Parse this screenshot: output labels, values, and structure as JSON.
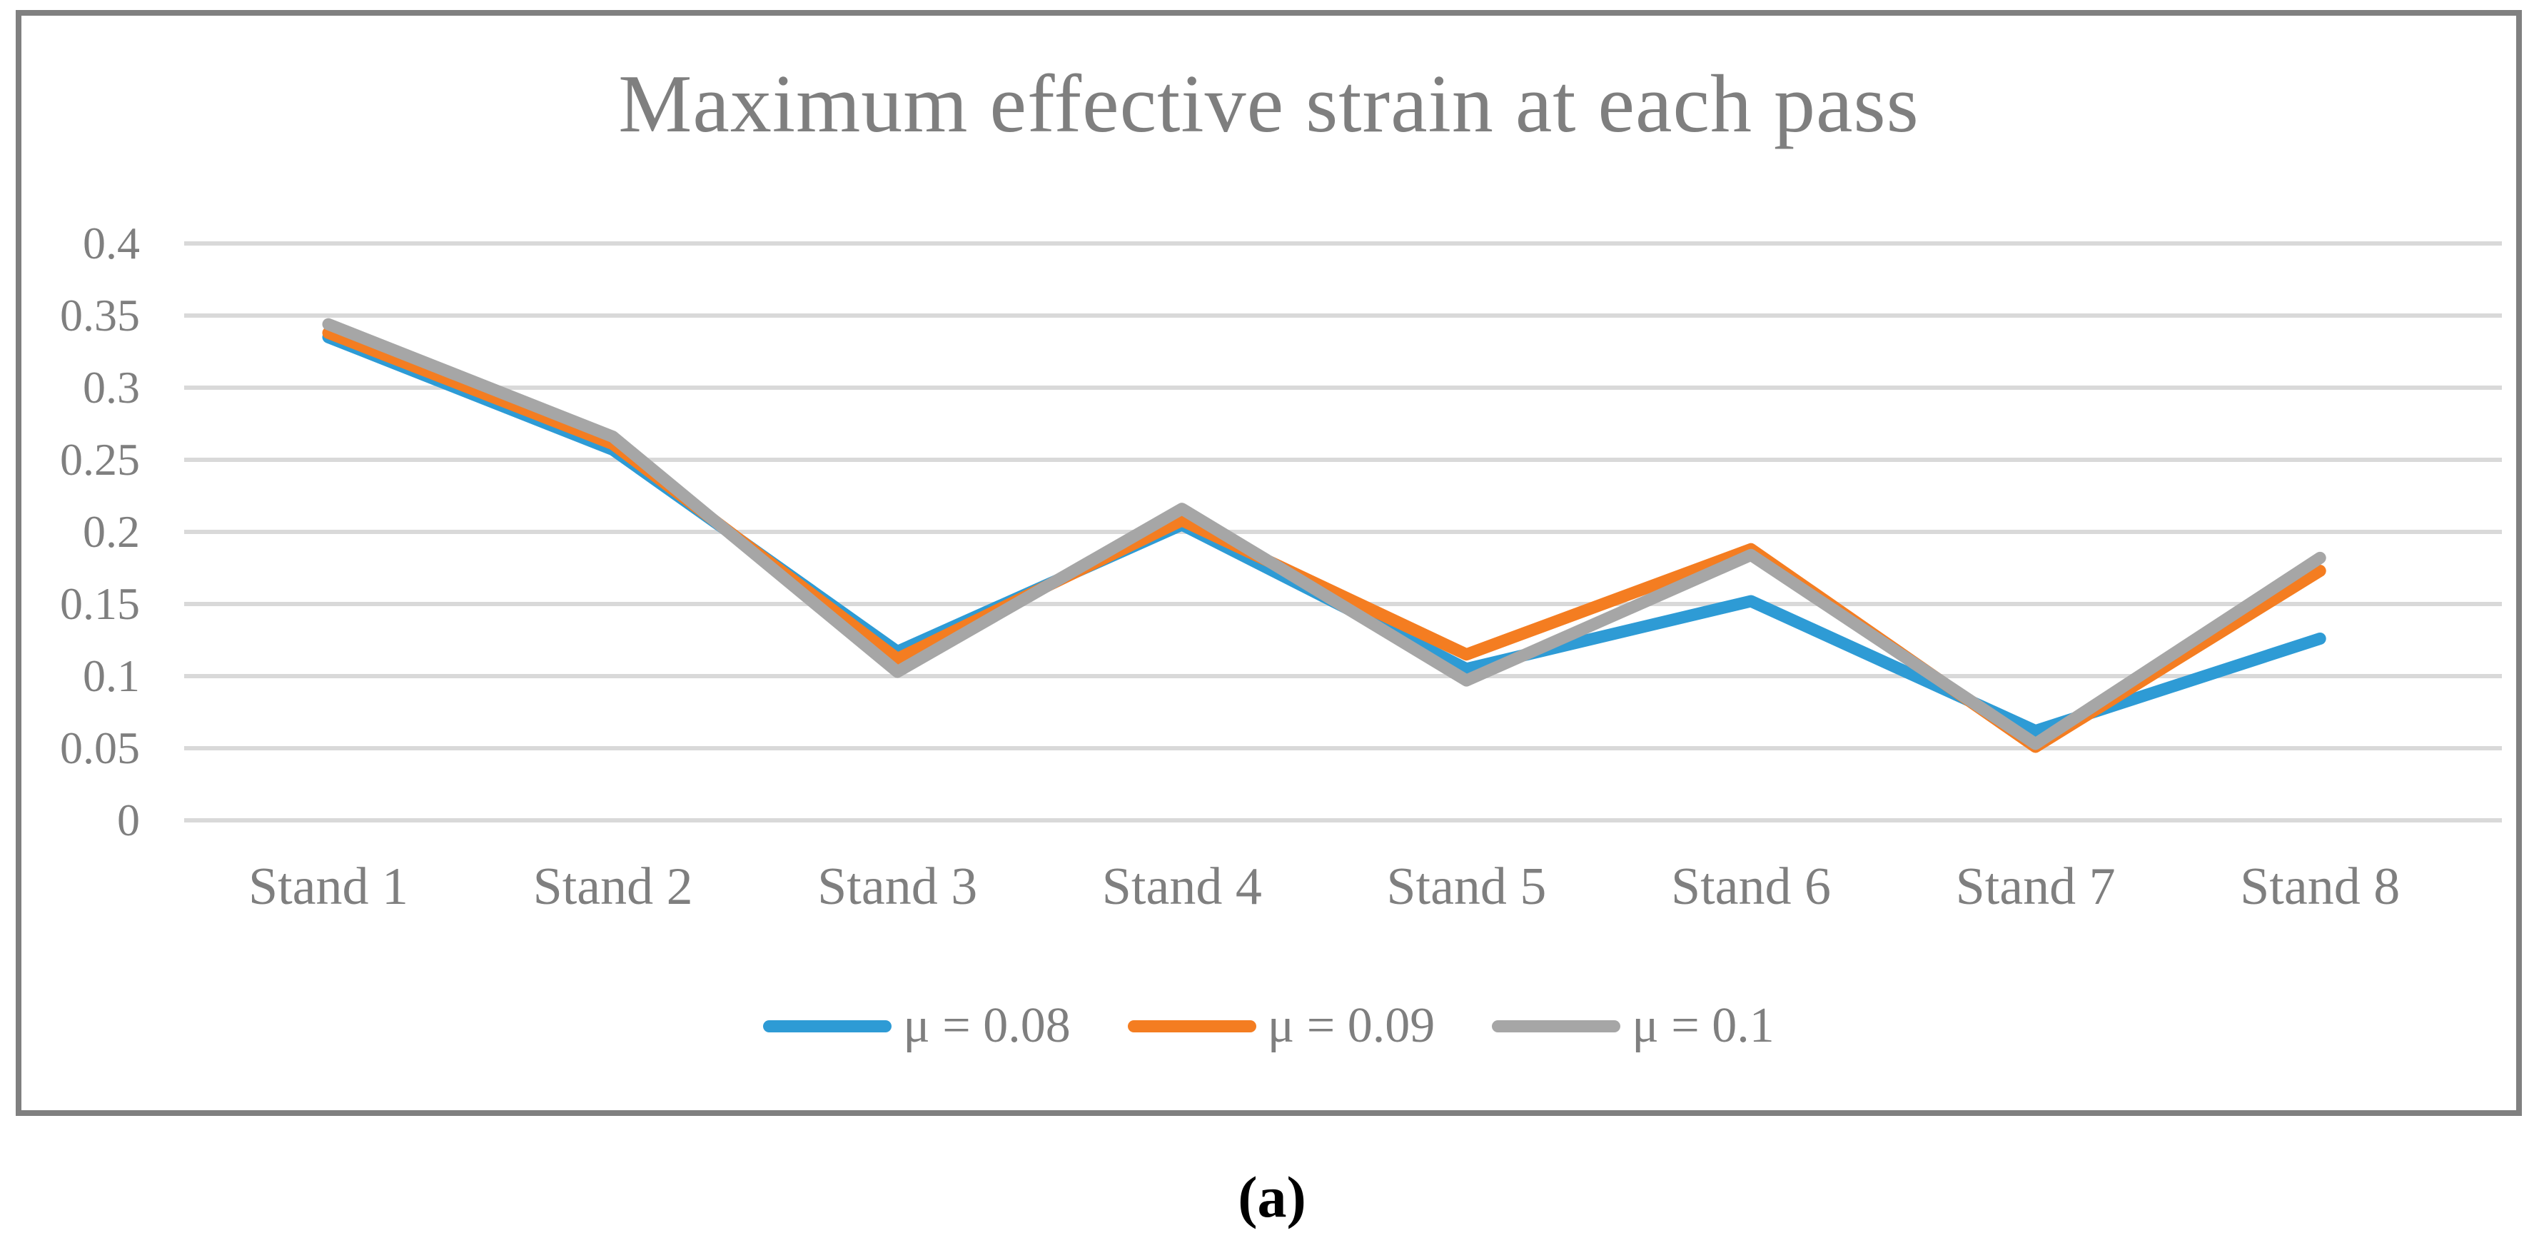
{
  "chart_data": {
    "type": "line",
    "title": "Maximum effective strain at each pass",
    "categories": [
      "Stand 1",
      "Stand 2",
      "Stand 3",
      "Stand 4",
      "Stand 5",
      "Stand 6",
      "Stand 7",
      "Stand 8"
    ],
    "series": [
      {
        "name": "μ = 0.08",
        "color": "#2E9BD5",
        "values": [
          0.335,
          0.257,
          0.117,
          0.205,
          0.105,
          0.152,
          0.062,
          0.126
        ]
      },
      {
        "name": "μ = 0.09",
        "color": "#F47D21",
        "values": [
          0.338,
          0.261,
          0.112,
          0.208,
          0.115,
          0.188,
          0.051,
          0.173
        ]
      },
      {
        "name": "μ = 0.1",
        "color": "#A6A6A6",
        "values": [
          0.344,
          0.266,
          0.103,
          0.216,
          0.097,
          0.184,
          0.053,
          0.182
        ]
      }
    ],
    "xlabel": "",
    "ylabel": "",
    "ylim": [
      0,
      0.4
    ],
    "ytick_step": 0.05,
    "ytick_labels": [
      "0",
      "0.05",
      "0.1",
      "0.15",
      "0.2",
      "0.25",
      "0.3",
      "0.35",
      "0.4"
    ],
    "grid": true,
    "legend_position": "bottom"
  },
  "styles": {
    "frame_border_color": "#808080",
    "title_color": "#7F7F7F",
    "axis_label_color": "#7F7F7F",
    "gridline_color": "#D9D9D9",
    "caption_color": "#000000"
  },
  "caption": "(a)"
}
